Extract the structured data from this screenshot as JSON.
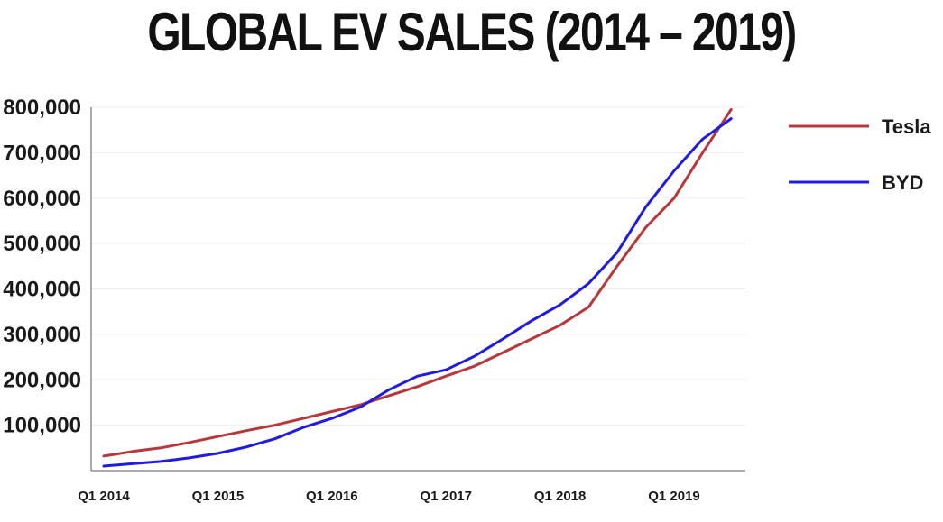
{
  "colors": {
    "tesla": "#b8373b",
    "byd": "#1f1be0",
    "grid": "#ebebeb",
    "axis": "#555555"
  },
  "chart_data": {
    "type": "line",
    "title": "GLOBAL EV SALES (2014 – 2019)",
    "xlabel": "",
    "ylabel": "",
    "x": [
      "Q1 2014",
      "Q2 2014",
      "Q3 2014",
      "Q4 2014",
      "Q1 2015",
      "Q2 2015",
      "Q3 2015",
      "Q4 2015",
      "Q1 2016",
      "Q2 2016",
      "Q3 2016",
      "Q4 2016",
      "Q1 2017",
      "Q2 2017",
      "Q3 2017",
      "Q4 2017",
      "Q1 2018",
      "Q2 2018",
      "Q3 2018",
      "Q4 2018",
      "Q1 2019",
      "Q2 2019",
      "Q3 2019"
    ],
    "x_tick_labels": [
      "Q1 2014",
      "Q1 2015",
      "Q1 2016",
      "Q1 2017",
      "Q1 2018",
      "Q1 2019"
    ],
    "ylim": [
      0,
      800000
    ],
    "y_tick_labels": [
      "100,000",
      "200,000",
      "300,000",
      "400,000",
      "500,000",
      "600,000",
      "700,000",
      "800,000"
    ],
    "grid": true,
    "legend_position": "top-right",
    "series": [
      {
        "name": "Tesla",
        "color": "#b8373b",
        "values": [
          32000,
          42000,
          50000,
          62000,
          75000,
          88000,
          100000,
          115000,
          130000,
          145000,
          165000,
          185000,
          208000,
          230000,
          260000,
          290000,
          320000,
          360000,
          450000,
          535000,
          600000,
          700000,
          795000
        ]
      },
      {
        "name": "BYD",
        "color": "#1f1be0",
        "values": [
          10000,
          15000,
          20000,
          28000,
          38000,
          52000,
          70000,
          95000,
          115000,
          140000,
          178000,
          208000,
          222000,
          252000,
          290000,
          330000,
          365000,
          412000,
          480000,
          580000,
          660000,
          730000,
          775000
        ]
      }
    ]
  }
}
